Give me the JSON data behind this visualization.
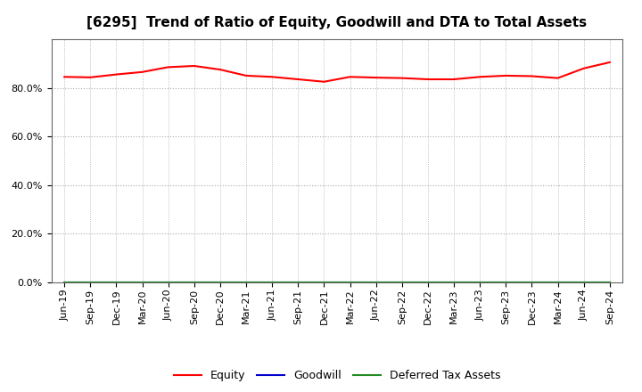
{
  "title": "[6295]  Trend of Ratio of Equity, Goodwill and DTA to Total Assets",
  "x_labels": [
    "Jun-19",
    "Sep-19",
    "Dec-19",
    "Mar-20",
    "Jun-20",
    "Sep-20",
    "Dec-20",
    "Mar-21",
    "Jun-21",
    "Sep-21",
    "Dec-21",
    "Mar-22",
    "Jun-22",
    "Sep-22",
    "Dec-22",
    "Mar-23",
    "Jun-23",
    "Sep-23",
    "Dec-23",
    "Mar-24",
    "Jun-24",
    "Sep-24"
  ],
  "equity": [
    84.5,
    84.3,
    85.5,
    86.5,
    88.5,
    89.0,
    87.5,
    85.0,
    84.5,
    83.5,
    82.5,
    84.5,
    84.2,
    84.0,
    83.5,
    83.5,
    84.5,
    85.0,
    84.8,
    84.0,
    88.0,
    90.5
  ],
  "goodwill": [
    0.0,
    0.0,
    0.0,
    0.0,
    0.0,
    0.0,
    0.0,
    0.0,
    0.0,
    0.0,
    0.0,
    0.0,
    0.0,
    0.0,
    0.0,
    0.0,
    0.0,
    0.0,
    0.0,
    0.0,
    0.0,
    0.0
  ],
  "dta": [
    0.0,
    0.0,
    0.0,
    0.0,
    0.0,
    0.0,
    0.0,
    0.0,
    0.0,
    0.0,
    0.0,
    0.0,
    0.0,
    0.0,
    0.0,
    0.0,
    0.0,
    0.0,
    0.0,
    0.0,
    0.0,
    0.0
  ],
  "equity_color": "#ff0000",
  "goodwill_color": "#0000cd",
  "dta_color": "#228b22",
  "bg_color": "#ffffff",
  "plot_bg_color": "#ffffff",
  "grid_color": "#aaaaaa",
  "ylim": [
    0,
    100
  ],
  "yticks": [
    0,
    20,
    40,
    60,
    80
  ],
  "title_fontsize": 11,
  "legend_fontsize": 9,
  "tick_fontsize": 8
}
